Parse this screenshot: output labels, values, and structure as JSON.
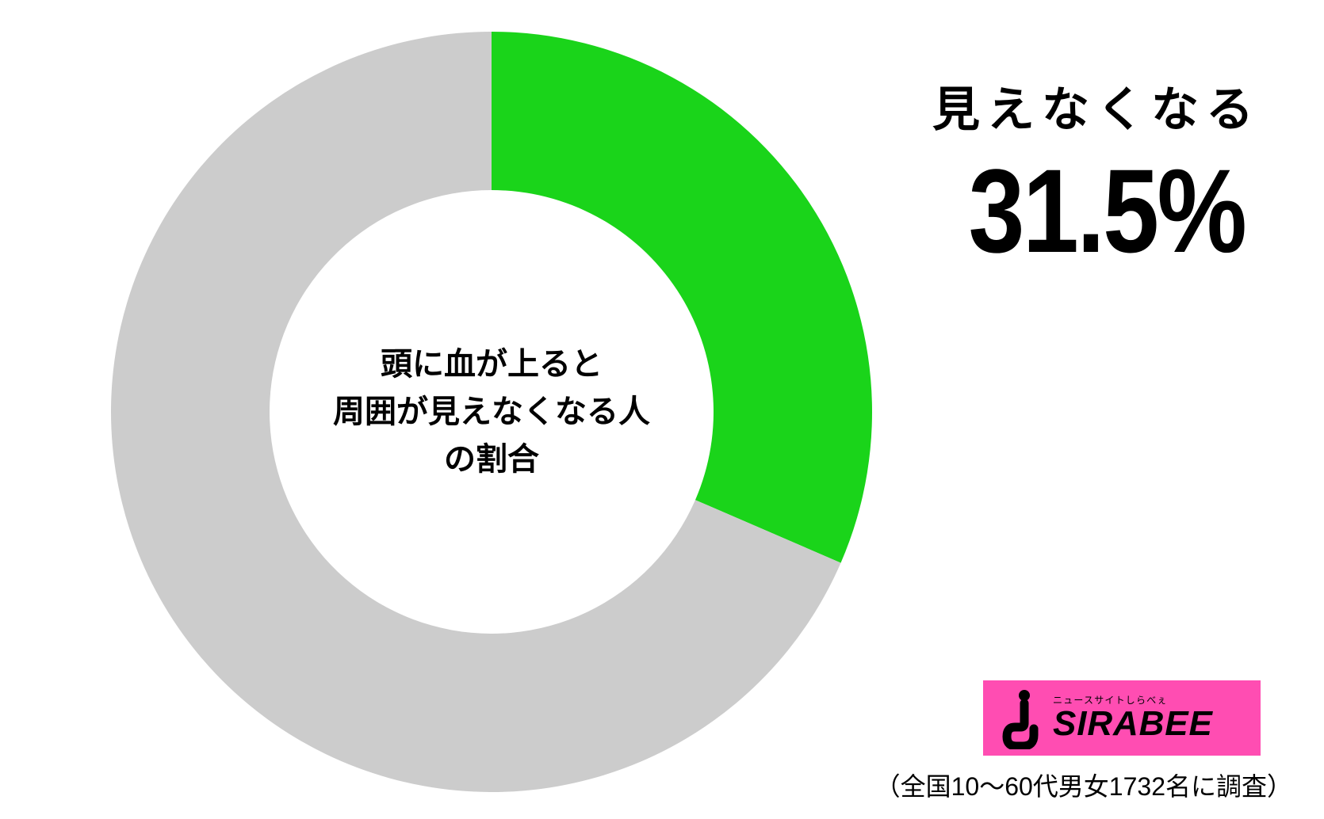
{
  "chart": {
    "type": "donut",
    "slices": [
      {
        "value": 31.5,
        "color": "#1ad41a"
      },
      {
        "value": 68.5,
        "color": "#cccccc"
      }
    ],
    "start_angle_deg": 0,
    "outer_radius": 480,
    "inner_radius": 280,
    "background_color": "#ffffff",
    "center_label": {
      "line1": "頭に血が上ると",
      "line2": "周囲が見えなくなる人",
      "line3": "の割合",
      "color": "#000000",
      "fontsize": 40,
      "font_weight": "bold"
    }
  },
  "callout": {
    "label": "見えなくなる",
    "label_fontsize": 60,
    "label_color": "#000000",
    "percent": "31.5%",
    "percent_fontsize": 150,
    "percent_color": "#000000"
  },
  "logo": {
    "background_color": "#ff4db2",
    "icon_color": "#000000",
    "subtitle": "ニュースサイトしらべぇ",
    "title": "SIRABEE"
  },
  "footnote": {
    "text": "（全国10～60代男女1732名に調査）",
    "fontsize": 32,
    "color": "#000000"
  }
}
